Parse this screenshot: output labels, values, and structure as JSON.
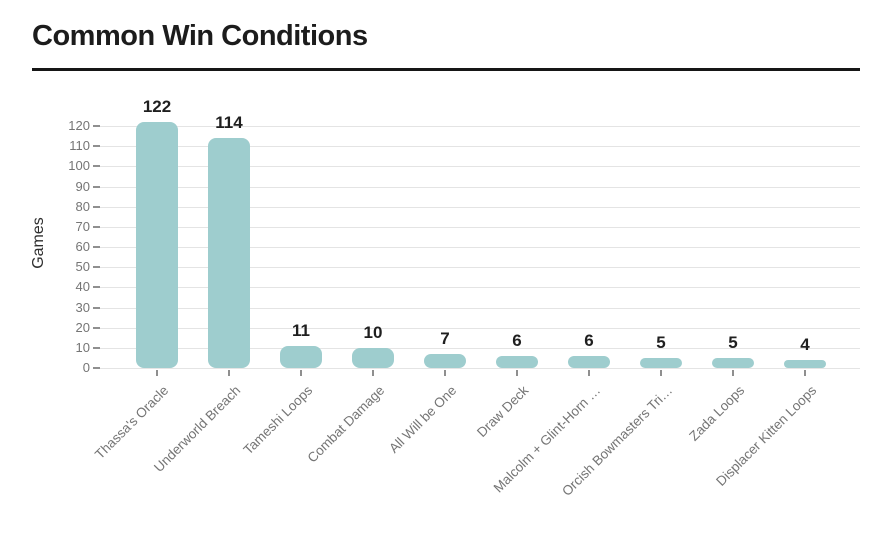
{
  "header": {
    "title": "Common Win Conditions"
  },
  "chart_data": {
    "type": "bar",
    "title": "Common Win Conditions",
    "ylabel": "Games",
    "xlabel": "",
    "categories": [
      "Thassa's Oracle",
      "Underworld Breach",
      "Tameshi Loops",
      "Combat Damage",
      "All Will be One",
      "Draw Deck",
      "Malcolm + Glint-Horn …",
      "Orcish Bowmasters Tri…",
      "Zada Loops",
      "Displacer Kitten Loops"
    ],
    "values": [
      122,
      114,
      11,
      10,
      7,
      6,
      6,
      5,
      5,
      4
    ],
    "value_labels": [
      "122",
      "114",
      "11",
      "10",
      "7",
      "6",
      "6",
      "5",
      "5",
      "4"
    ],
    "yticks": [
      0,
      10,
      20,
      30,
      40,
      50,
      60,
      70,
      80,
      90,
      100,
      110,
      120
    ],
    "ylim": [
      0,
      120
    ],
    "grid": true,
    "legend": false,
    "colors": {
      "bar": "#9ecdce",
      "value_label": "#1f1f1f",
      "axis_tick_label": "#757575",
      "category_label": "#757575",
      "gridline": "#e4e4e4",
      "tick_mark": "#8f8f8f",
      "title": "#1c1c1c",
      "divider": "#161616",
      "background": "#ffffff"
    }
  }
}
